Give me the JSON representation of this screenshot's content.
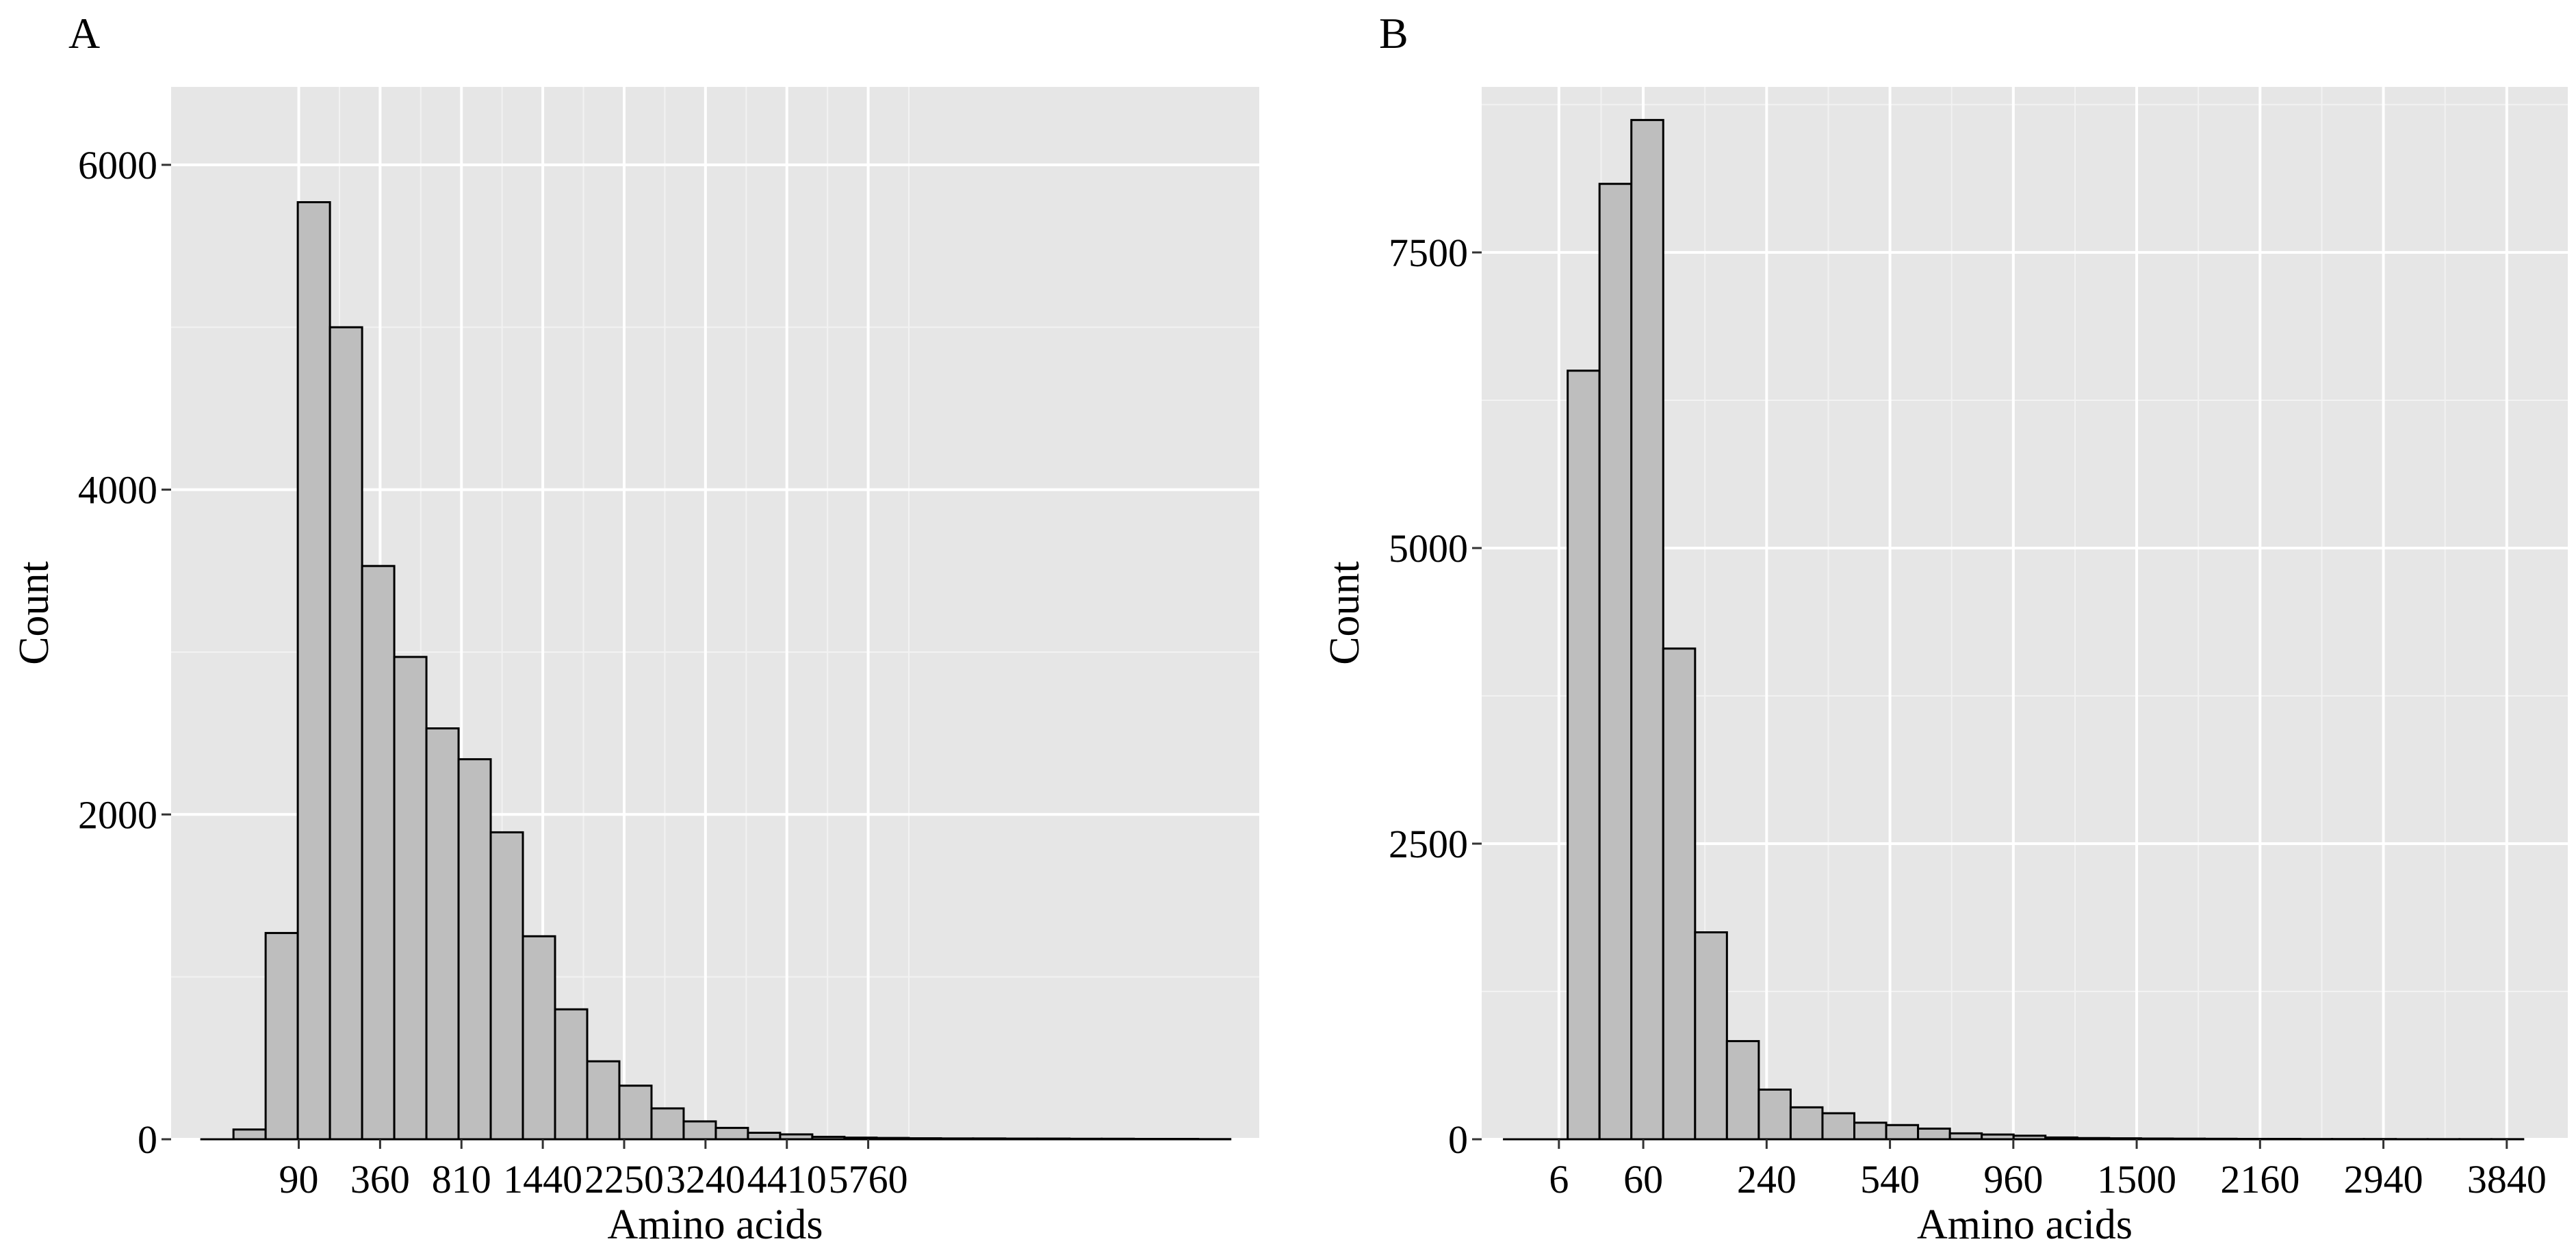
{
  "chart_data": [
    {
      "panel_label": "A",
      "type": "bar",
      "xlabel": "Amino acids",
      "ylabel": "Count",
      "x_scale": "sqrt",
      "x_ticks": [
        90,
        360,
        810,
        1440,
        2250,
        3240,
        4410,
        5760
      ],
      "y_ticks": [
        0,
        2000,
        4000,
        6000
      ],
      "ylim": [
        0,
        6000
      ],
      "grid": true,
      "bin_width_sqrt": 3.75,
      "bin_centers_sqrt": [
        0.0,
        3.75,
        7.5,
        11.25,
        15.0,
        18.75,
        22.5,
        26.25,
        30.0,
        33.75,
        37.5,
        41.25,
        45.0,
        48.75,
        52.5,
        56.25,
        60.0,
        63.75,
        67.5,
        71.25,
        75.0,
        78.75,
        82.5,
        86.25,
        90.0,
        93.75,
        97.5,
        101.25,
        105.0,
        108.75,
        112.5,
        116.25
      ],
      "values": [
        0,
        60,
        1270,
        5770,
        5000,
        3530,
        2970,
        2530,
        2340,
        1890,
        1250,
        800,
        480,
        330,
        190,
        110,
        70,
        40,
        30,
        15,
        10,
        8,
        6,
        5,
        5,
        4,
        4,
        3,
        3,
        2,
        2,
        1
      ]
    },
    {
      "panel_label": "B",
      "type": "bar",
      "xlabel": "Amino acids",
      "ylabel": "Count",
      "x_scale": "sqrt",
      "x_ticks": [
        6,
        60,
        240,
        540,
        960,
        1500,
        2160,
        2940,
        3840
      ],
      "y_ticks": [
        0,
        2500,
        5000,
        7500
      ],
      "ylim": [
        0,
        8800
      ],
      "grid": true,
      "bin_width_sqrt": 2.0,
      "bin_centers_sqrt": [
        0.0,
        2.0,
        4.0,
        6.0,
        8.0,
        10.0,
        12.0,
        14.0,
        16.0,
        18.0,
        20.0,
        22.0,
        24.0,
        26.0,
        28.0,
        30.0,
        32.0,
        34.0,
        36.0,
        38.0,
        40.0,
        42.0,
        44.0,
        46.0,
        48.0,
        50.0,
        52.0,
        54.0,
        56.0,
        58.0,
        60.0,
        62.0
      ],
      "values": [
        0,
        0,
        6500,
        8080,
        8620,
        4150,
        1750,
        830,
        420,
        270,
        220,
        140,
        120,
        90,
        50,
        40,
        30,
        15,
        10,
        8,
        6,
        5,
        4,
        3,
        3,
        2,
        2,
        2,
        1,
        1,
        1,
        1
      ]
    }
  ]
}
